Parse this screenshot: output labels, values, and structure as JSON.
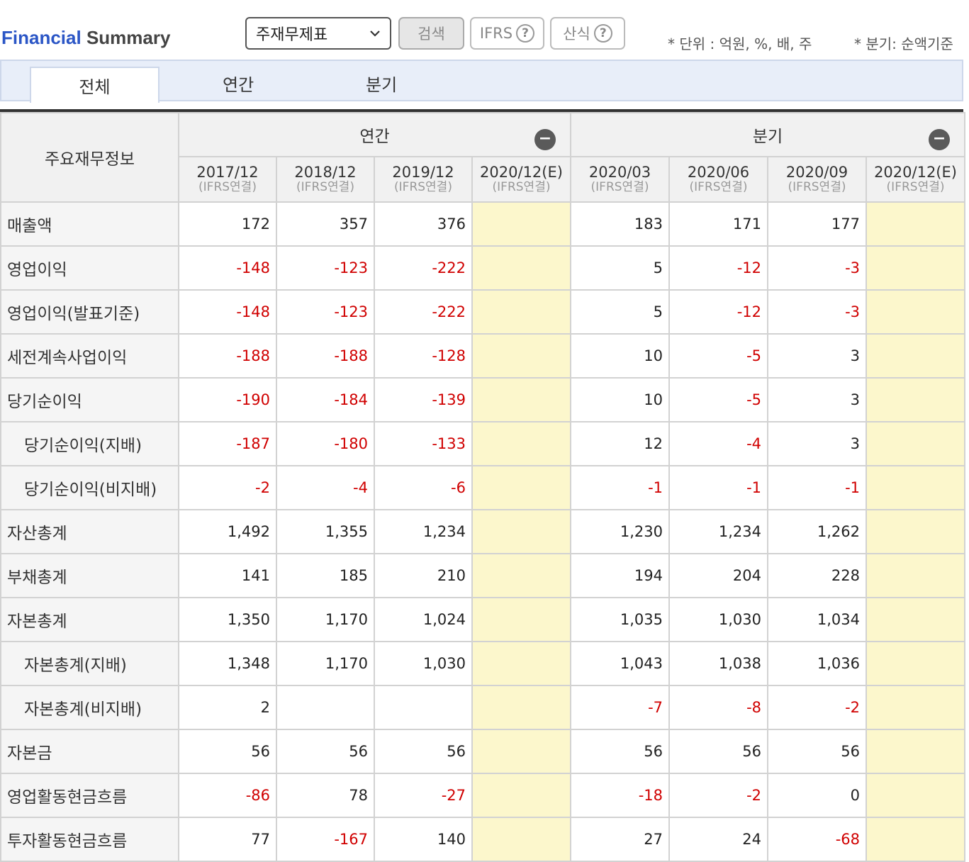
{
  "header": {
    "title_part1": "Financial",
    "title_part2": "Summary",
    "select_value": "주재무제표",
    "search_label": "검색",
    "ifrs_label": "IFRS",
    "formula_label": "산식",
    "help_glyph": "?",
    "unit_note": "* 단위 : 억원, %, 배, 주",
    "quarter_note": "* 분기: 순액기준"
  },
  "tabs": [
    "전체",
    "연간",
    "분기"
  ],
  "table": {
    "corner_label": "주요재무정보",
    "groups": {
      "annual": "연간",
      "quarter": "분기"
    },
    "collapse_glyph": "−",
    "periods": [
      {
        "date": "2017/12",
        "sub": "(IFRS연결)"
      },
      {
        "date": "2018/12",
        "sub": "(IFRS연결)"
      },
      {
        "date": "2019/12",
        "sub": "(IFRS연결)"
      },
      {
        "date": "2020/12(E)",
        "sub": "(IFRS연결)"
      },
      {
        "date": "2020/03",
        "sub": "(IFRS연결)"
      },
      {
        "date": "2020/06",
        "sub": "(IFRS연결)"
      },
      {
        "date": "2020/09",
        "sub": "(IFRS연결)"
      },
      {
        "date": "2020/12(E)",
        "sub": "(IFRS연결)"
      }
    ],
    "rows": [
      {
        "label": "매출액",
        "values": [
          "172",
          "357",
          "376",
          "",
          "183",
          "171",
          "177",
          ""
        ]
      },
      {
        "label": "영업이익",
        "values": [
          "-148",
          "-123",
          "-222",
          "",
          "5",
          "-12",
          "-3",
          ""
        ]
      },
      {
        "label": "영업이익(발표기준)",
        "values": [
          "-148",
          "-123",
          "-222",
          "",
          "5",
          "-12",
          "-3",
          ""
        ]
      },
      {
        "label": "세전계속사업이익",
        "values": [
          "-188",
          "-188",
          "-128",
          "",
          "10",
          "-5",
          "3",
          ""
        ]
      },
      {
        "label": "당기순이익",
        "values": [
          "-190",
          "-184",
          "-139",
          "",
          "10",
          "-5",
          "3",
          ""
        ]
      },
      {
        "label": "당기순이익(지배)",
        "values": [
          "-187",
          "-180",
          "-133",
          "",
          "12",
          "-4",
          "3",
          ""
        ]
      },
      {
        "label": "당기순이익(비지배)",
        "values": [
          "-2",
          "-4",
          "-6",
          "",
          "-1",
          "-1",
          "-1",
          ""
        ]
      },
      {
        "label": "자산총계",
        "values": [
          "1,492",
          "1,355",
          "1,234",
          "",
          "1,230",
          "1,234",
          "1,262",
          ""
        ]
      },
      {
        "label": "부채총계",
        "values": [
          "141",
          "185",
          "210",
          "",
          "194",
          "204",
          "228",
          ""
        ]
      },
      {
        "label": "자본총계",
        "values": [
          "1,350",
          "1,170",
          "1,024",
          "",
          "1,035",
          "1,030",
          "1,034",
          ""
        ]
      },
      {
        "label": "자본총계(지배)",
        "values": [
          "1,348",
          "1,170",
          "1,030",
          "",
          "1,043",
          "1,038",
          "1,036",
          ""
        ]
      },
      {
        "label": "자본총계(비지배)",
        "values": [
          "2",
          "",
          "",
          "",
          "-7",
          "-8",
          "-2",
          ""
        ]
      },
      {
        "label": "자본금",
        "values": [
          "56",
          "56",
          "56",
          "",
          "56",
          "56",
          "56",
          ""
        ]
      },
      {
        "label": "영업활동현금흐름",
        "values": [
          "-86",
          "78",
          "-27",
          "",
          "-18",
          "-2",
          "0",
          ""
        ]
      },
      {
        "label": "투자활동현금흐름",
        "values": [
          "77",
          "-167",
          "140",
          "",
          "27",
          "24",
          "-68",
          ""
        ]
      }
    ]
  },
  "colors": {
    "title_accent": "#2b56c6",
    "negative": "#d00000",
    "estimate_bg": "#fcf7cc",
    "tabbar_bg": "#e8eef9"
  },
  "icons": [
    "chevron-down-icon",
    "help-icon",
    "collapse-minus-icon"
  ]
}
